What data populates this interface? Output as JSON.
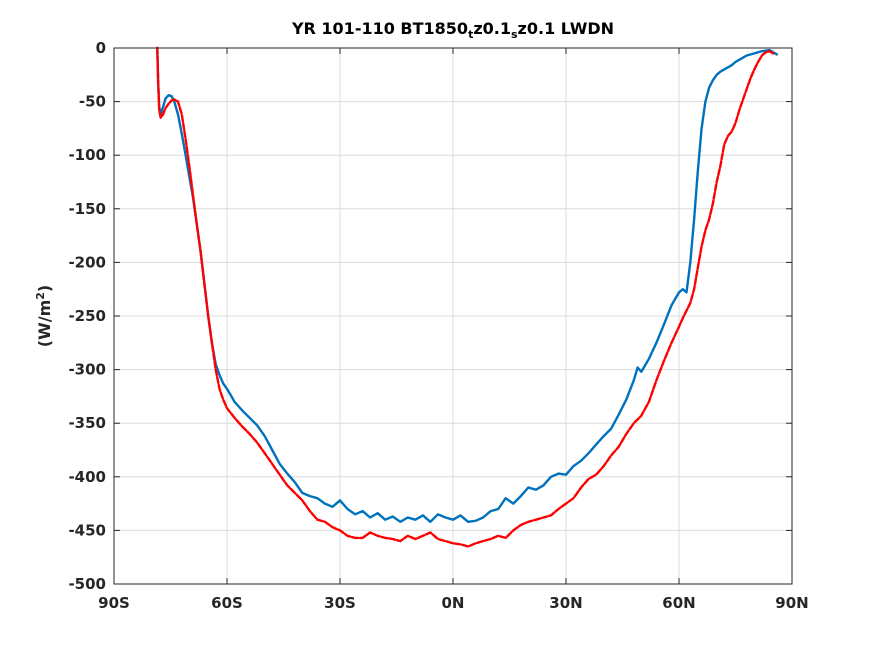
{
  "chart_data": {
    "type": "line",
    "title_parts": {
      "a": "YR 101-110 BT1850",
      "sub1": "t",
      "b": "z0.1",
      "sub2": "s",
      "c": "z0.1 LWDN"
    },
    "ylabel_parts": {
      "a": "(W/m",
      "sup": "2",
      "b": ")"
    },
    "xlabel": "",
    "xlim": [
      -90,
      90
    ],
    "ylim": [
      -500,
      0
    ],
    "xticks": [
      {
        "value": -90,
        "label": "90S"
      },
      {
        "value": -60,
        "label": "60S"
      },
      {
        "value": -30,
        "label": "30S"
      },
      {
        "value": 0,
        "label": "0N"
      },
      {
        "value": 30,
        "label": "30N"
      },
      {
        "value": 60,
        "label": "60N"
      },
      {
        "value": 90,
        "label": "90N"
      }
    ],
    "yticks": [
      {
        "value": 0,
        "label": "0"
      },
      {
        "value": -50,
        "label": "-50"
      },
      {
        "value": -100,
        "label": "-100"
      },
      {
        "value": -150,
        "label": "-150"
      },
      {
        "value": -200,
        "label": "-200"
      },
      {
        "value": -250,
        "label": "-250"
      },
      {
        "value": -300,
        "label": "-300"
      },
      {
        "value": -350,
        "label": "-350"
      },
      {
        "value": -400,
        "label": "-400"
      },
      {
        "value": -450,
        "label": "-450"
      },
      {
        "value": -500,
        "label": "-500"
      }
    ],
    "grid": true,
    "series": [
      {
        "color": "#0072BD",
        "style": "solid",
        "x": [
          -78.5,
          -78.3,
          -78.0,
          -77.6,
          -77.0,
          -76.3,
          -75.5,
          -74.7,
          -74.0,
          -73.0,
          -72.0,
          -71.0,
          -70.0,
          -69.0,
          -68.0,
          -67.0,
          -66.0,
          -65.0,
          -64.0,
          -63.0,
          -62.0,
          -61.0,
          -60.0,
          -59.0,
          -58.0,
          -57.0,
          -56.0,
          -54.0,
          -52.0,
          -50.0,
          -48.0,
          -46.0,
          -44.0,
          -42.0,
          -40.0,
          -38.0,
          -36.0,
          -34.0,
          -32.0,
          -30.0,
          -28.0,
          -26.0,
          -24.0,
          -22.0,
          -20.0,
          -18.0,
          -16.0,
          -14.0,
          -12.0,
          -10.0,
          -8.0,
          -6.0,
          -4.0,
          -2.0,
          0.0,
          2.0,
          4.0,
          6.0,
          8.0,
          10.0,
          12.0,
          14.0,
          16.0,
          18.0,
          20.0,
          22.0,
          24.0,
          26.0,
          28.0,
          30.0,
          32.0,
          34.0,
          36.0,
          38.0,
          40.0,
          42.0,
          44.0,
          46.0,
          48.0,
          49.0,
          50.0,
          52.0,
          54.0,
          56.0,
          58.0,
          60.0,
          61.0,
          62.0,
          63.0,
          64.0,
          65.0,
          66.0,
          67.0,
          68.0,
          69.0,
          70.0,
          71.0,
          72.0,
          73.0,
          74.0,
          75.0,
          76.0,
          77.0,
          78.0,
          80.0,
          82.0,
          84.0,
          85.0,
          86.0
        ],
        "y": [
          0,
          -30,
          -55,
          -62,
          -55,
          -47,
          -44,
          -45,
          -50,
          -62,
          -80,
          -100,
          -120,
          -140,
          -165,
          -190,
          -220,
          -250,
          -275,
          -295,
          -305,
          -313,
          -318,
          -324,
          -330,
          -334,
          -338,
          -345,
          -352,
          -362,
          -375,
          -388,
          -397,
          -405,
          -415,
          -418,
          -420,
          -425,
          -428,
          -422,
          -430,
          -435,
          -432,
          -438,
          -434,
          -440,
          -437,
          -442,
          -438,
          -440,
          -436,
          -442,
          -435,
          -438,
          -440,
          -436,
          -442,
          -441,
          -438,
          -432,
          -430,
          -420,
          -425,
          -418,
          -410,
          -412,
          -408,
          -400,
          -397,
          -398,
          -390,
          -385,
          -378,
          -370,
          -362,
          -355,
          -342,
          -328,
          -310,
          -298,
          -302,
          -290,
          -275,
          -258,
          -240,
          -228,
          -225,
          -228,
          -200,
          -160,
          -115,
          -75,
          -50,
          -37,
          -30,
          -25,
          -22,
          -20,
          -18,
          -16,
          -13,
          -11,
          -9,
          -7,
          -5,
          -3,
          -2,
          -4,
          -6
        ]
      },
      {
        "color": "#FF0000",
        "style": "dashed",
        "x": [
          -78.5,
          -78.3,
          -78.0,
          -77.6,
          -77.0,
          -76.3,
          -75.5,
          -74.7,
          -74.0,
          -73.0,
          -72.0,
          -71.0,
          -70.0,
          -69.0,
          -68.0,
          -67.0,
          -66.0,
          -65.0,
          -64.0,
          -63.0,
          -62.0,
          -61.0,
          -60.0,
          -58.0,
          -56.0,
          -54.0,
          -52.0,
          -50.0,
          -48.0,
          -46.0,
          -44.0,
          -42.0,
          -40.0,
          -38.0,
          -36.0,
          -34.0,
          -32.0,
          -30.0,
          -28.0,
          -26.0,
          -24.0,
          -22.0,
          -20.0,
          -18.0,
          -16.0,
          -14.0,
          -12.0,
          -10.0,
          -8.0,
          -6.0,
          -4.0,
          -2.0,
          0.0,
          2.0,
          4.0,
          6.0,
          8.0,
          10.0,
          12.0,
          14.0,
          16.0,
          18.0,
          20.0,
          22.0,
          24.0,
          26.0,
          28.0,
          30.0,
          32.0,
          34.0,
          36.0,
          38.0,
          40.0,
          42.0,
          44.0,
          46.0,
          48.0,
          50.0,
          52.0,
          54.0,
          56.0,
          58.0,
          60.0,
          61.0,
          62.0,
          63.0,
          64.0,
          65.0,
          66.0,
          67.0,
          68.0,
          69.0,
          70.0,
          71.0,
          72.0,
          73.0,
          74.0,
          75.0,
          76.0,
          77.0,
          78.0,
          79.0,
          80.0,
          81.0,
          82.0,
          83.0,
          84.0,
          85.0
        ],
        "y": [
          0,
          -30,
          -58,
          -65,
          -62,
          -56,
          -52,
          -49,
          -48,
          -50,
          -62,
          -85,
          -110,
          -138,
          -165,
          -190,
          -220,
          -250,
          -275,
          -300,
          -318,
          -328,
          -336,
          -345,
          -353,
          -360,
          -368,
          -378,
          -388,
          -398,
          -408,
          -415,
          -422,
          -432,
          -440,
          -442,
          -447,
          -450,
          -455,
          -457,
          -457,
          -452,
          -455,
          -457,
          -458,
          -460,
          -455,
          -458,
          -455,
          -452,
          -458,
          -460,
          -462,
          -463,
          -465,
          -462,
          -460,
          -458,
          -455,
          -457,
          -450,
          -445,
          -442,
          -440,
          -438,
          -436,
          -430,
          -425,
          -420,
          -410,
          -402,
          -398,
          -390,
          -380,
          -372,
          -360,
          -350,
          -343,
          -330,
          -310,
          -292,
          -275,
          -260,
          -252,
          -245,
          -238,
          -225,
          -205,
          -185,
          -170,
          -160,
          -145,
          -125,
          -110,
          -90,
          -82,
          -78,
          -70,
          -58,
          -48,
          -38,
          -28,
          -20,
          -13,
          -7,
          -4,
          -3,
          -5
        ]
      }
    ]
  }
}
